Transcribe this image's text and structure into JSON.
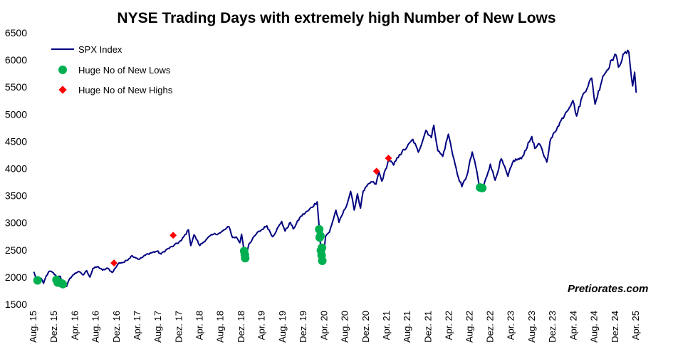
{
  "chart_data": {
    "type": "line",
    "title": "NYSE Trading Days with extremely high Number of New Lows",
    "xlabel": "",
    "ylabel": "",
    "ylim": [
      1500,
      6500
    ],
    "yticks": [
      1500,
      2000,
      2500,
      3000,
      3500,
      4000,
      4500,
      5000,
      5500,
      6000,
      6500
    ],
    "x_date_range": [
      "2015-08-01",
      "2025-05-01"
    ],
    "xtick_dates": [
      "2015-08-01",
      "2015-12-01",
      "2016-04-01",
      "2016-08-01",
      "2016-12-01",
      "2017-04-01",
      "2017-08-01",
      "2017-12-01",
      "2018-04-01",
      "2018-08-01",
      "2018-12-01",
      "2019-04-01",
      "2019-08-01",
      "2019-12-01",
      "2020-04-01",
      "2020-08-01",
      "2020-12-01",
      "2021-04-01",
      "2021-08-01",
      "2021-12-01",
      "2022-04-01",
      "2022-08-01",
      "2022-12-01",
      "2023-04-01",
      "2023-08-01",
      "2023-12-01",
      "2024-04-01",
      "2024-08-01",
      "2024-12-01",
      "2025-04-01"
    ],
    "xtick_labels": [
      "Aug. 15",
      "Dez. 15",
      "Apr. 16",
      "Aug. 16",
      "Dez. 16",
      "Apr. 17",
      "Aug. 17",
      "Dez. 17",
      "Apr. 18",
      "Aug. 18",
      "Dez. 18",
      "Apr. 19",
      "Aug. 19",
      "Dez. 19",
      "Apr. 20",
      "Aug. 20",
      "Dez. 20",
      "Apr. 21",
      "Aug. 21",
      "Dez. 21",
      "Apr. 22",
      "Aug. 22",
      "Dez. 22",
      "Apr. 23",
      "Aug. 23",
      "Dez. 23",
      "Apr. 24",
      "Aug. 24",
      "Dez. 24",
      "Apr. 25"
    ],
    "legend": {
      "placement": "top-left",
      "entries": [
        "SPX Index",
        "Huge No of New Lows",
        "Huge No of New Highs"
      ]
    },
    "grid": false,
    "series": [
      {
        "name": "SPX Index",
        "kind": "line",
        "color": "#000080",
        "points": [
          [
            "2015-08-03",
            2098
          ],
          [
            "2015-08-24",
            1893
          ],
          [
            "2015-09-15",
            1978
          ],
          [
            "2015-09-29",
            1884
          ],
          [
            "2015-10-15",
            2023
          ],
          [
            "2015-11-03",
            2109
          ],
          [
            "2015-11-20",
            2089
          ],
          [
            "2015-12-14",
            2012
          ],
          [
            "2016-01-05",
            2016
          ],
          [
            "2016-01-20",
            1859
          ],
          [
            "2016-02-11",
            1829
          ],
          [
            "2016-03-01",
            1978
          ],
          [
            "2016-04-01",
            2072
          ],
          [
            "2016-04-20",
            2102
          ],
          [
            "2016-05-19",
            2040
          ],
          [
            "2016-06-08",
            2119
          ],
          [
            "2016-06-27",
            2000
          ],
          [
            "2016-07-15",
            2161
          ],
          [
            "2016-08-15",
            2190
          ],
          [
            "2016-09-09",
            2127
          ],
          [
            "2016-10-10",
            2163
          ],
          [
            "2016-11-04",
            2085
          ],
          [
            "2016-11-30",
            2198
          ],
          [
            "2016-12-15",
            2262
          ],
          [
            "2017-01-15",
            2275
          ],
          [
            "2017-03-01",
            2395
          ],
          [
            "2017-04-13",
            2328
          ],
          [
            "2017-06-01",
            2430
          ],
          [
            "2017-07-25",
            2477
          ],
          [
            "2017-08-18",
            2425
          ],
          [
            "2017-09-15",
            2500
          ],
          [
            "2017-11-01",
            2580
          ],
          [
            "2017-12-15",
            2675
          ],
          [
            "2018-01-26",
            2872
          ],
          [
            "2018-02-08",
            2581
          ],
          [
            "2018-02-27",
            2780
          ],
          [
            "2018-04-02",
            2582
          ],
          [
            "2018-05-15",
            2712
          ],
          [
            "2018-06-15",
            2780
          ],
          [
            "2018-08-01",
            2815
          ],
          [
            "2018-09-20",
            2930
          ],
          [
            "2018-10-11",
            2728
          ],
          [
            "2018-11-01",
            2740
          ],
          [
            "2018-11-23",
            2632
          ],
          [
            "2018-12-03",
            2790
          ],
          [
            "2018-12-24",
            2351
          ],
          [
            "2019-01-15",
            2610
          ],
          [
            "2019-03-01",
            2803
          ],
          [
            "2019-04-30",
            2945
          ],
          [
            "2019-06-03",
            2744
          ],
          [
            "2019-07-26",
            3025
          ],
          [
            "2019-08-15",
            2848
          ],
          [
            "2019-09-15",
            3007
          ],
          [
            "2019-10-02",
            2887
          ],
          [
            "2019-11-15",
            3120
          ],
          [
            "2019-12-31",
            3230
          ],
          [
            "2020-02-19",
            3386
          ],
          [
            "2020-03-01",
            2954
          ],
          [
            "2020-03-12",
            2480
          ],
          [
            "2020-03-23",
            2237
          ],
          [
            "2020-04-08",
            2750
          ],
          [
            "2020-05-01",
            2830
          ],
          [
            "2020-06-08",
            3232
          ],
          [
            "2020-06-26",
            3009
          ],
          [
            "2020-08-15",
            3372
          ],
          [
            "2020-09-02",
            3580
          ],
          [
            "2020-09-23",
            3236
          ],
          [
            "2020-10-12",
            3534
          ],
          [
            "2020-10-30",
            3270
          ],
          [
            "2020-11-15",
            3585
          ],
          [
            "2020-12-31",
            3756
          ],
          [
            "2021-01-29",
            3714
          ],
          [
            "2021-02-15",
            3934
          ],
          [
            "2021-03-04",
            3768
          ],
          [
            "2021-04-15",
            4170
          ],
          [
            "2021-05-12",
            4063
          ],
          [
            "2021-06-15",
            4255
          ],
          [
            "2021-07-30",
            4395
          ],
          [
            "2021-09-02",
            4537
          ],
          [
            "2021-10-04",
            4300
          ],
          [
            "2021-11-18",
            4705
          ],
          [
            "2021-12-20",
            4568
          ],
          [
            "2022-01-03",
            4796
          ],
          [
            "2022-01-27",
            4326
          ],
          [
            "2022-02-24",
            4225
          ],
          [
            "2022-03-29",
            4631
          ],
          [
            "2022-05-20",
            3900
          ],
          [
            "2022-06-16",
            3666
          ],
          [
            "2022-07-15",
            3863
          ],
          [
            "2022-08-16",
            4305
          ],
          [
            "2022-09-13",
            3932
          ],
          [
            "2022-09-30",
            3586
          ],
          [
            "2022-10-12",
            3577
          ],
          [
            "2022-11-30",
            4080
          ],
          [
            "2022-12-28",
            3783
          ],
          [
            "2023-02-02",
            4179
          ],
          [
            "2023-03-13",
            3855
          ],
          [
            "2023-04-15",
            4150
          ],
          [
            "2023-05-31",
            4180
          ],
          [
            "2023-07-31",
            4588
          ],
          [
            "2023-08-18",
            4370
          ],
          [
            "2023-09-15",
            4450
          ],
          [
            "2023-10-27",
            4117
          ],
          [
            "2023-11-15",
            4500
          ],
          [
            "2023-12-29",
            4770
          ],
          [
            "2024-02-15",
            5030
          ],
          [
            "2024-03-28",
            5254
          ],
          [
            "2024-04-19",
            4967
          ],
          [
            "2024-05-21",
            5321
          ],
          [
            "2024-07-16",
            5667
          ],
          [
            "2024-08-05",
            5186
          ],
          [
            "2024-09-20",
            5702
          ],
          [
            "2024-10-15",
            5815
          ],
          [
            "2024-11-11",
            6001
          ],
          [
            "2024-12-06",
            6090
          ],
          [
            "2024-12-20",
            5867
          ],
          [
            "2025-01-23",
            6119
          ],
          [
            "2025-02-19",
            6144
          ],
          [
            "2025-03-13",
            5521
          ],
          [
            "2025-03-25",
            5776
          ],
          [
            "2025-04-03",
            5396
          ]
        ]
      },
      {
        "name": "Huge No of New Lows",
        "kind": "markers",
        "marker": "circle",
        "color": "#00B050",
        "points": [
          [
            "2015-08-25",
            1940
          ],
          [
            "2015-12-14",
            1950
          ],
          [
            "2015-12-21",
            1900
          ],
          [
            "2016-01-10",
            1890
          ],
          [
            "2016-01-20",
            1870
          ],
          [
            "2018-12-18",
            2480
          ],
          [
            "2018-12-22",
            2410
          ],
          [
            "2018-12-24",
            2350
          ],
          [
            "2020-03-02",
            2880
          ],
          [
            "2020-03-05",
            2730
          ],
          [
            "2020-03-09",
            2760
          ],
          [
            "2020-03-12",
            2490
          ],
          [
            "2020-03-16",
            2400
          ],
          [
            "2020-03-18",
            2540
          ],
          [
            "2020-03-20",
            2300
          ],
          [
            "2022-10-01",
            3650
          ],
          [
            "2022-10-14",
            3640
          ]
        ]
      },
      {
        "name": "Huge No of New Highs",
        "kind": "markers",
        "marker": "diamond",
        "color": "#FF0000",
        "points": [
          [
            "2016-11-15",
            2260
          ],
          [
            "2017-10-28",
            2770
          ],
          [
            "2021-02-01",
            3950
          ],
          [
            "2021-04-12",
            4190
          ]
        ]
      }
    ]
  },
  "watermark": "Pretiorates.com"
}
